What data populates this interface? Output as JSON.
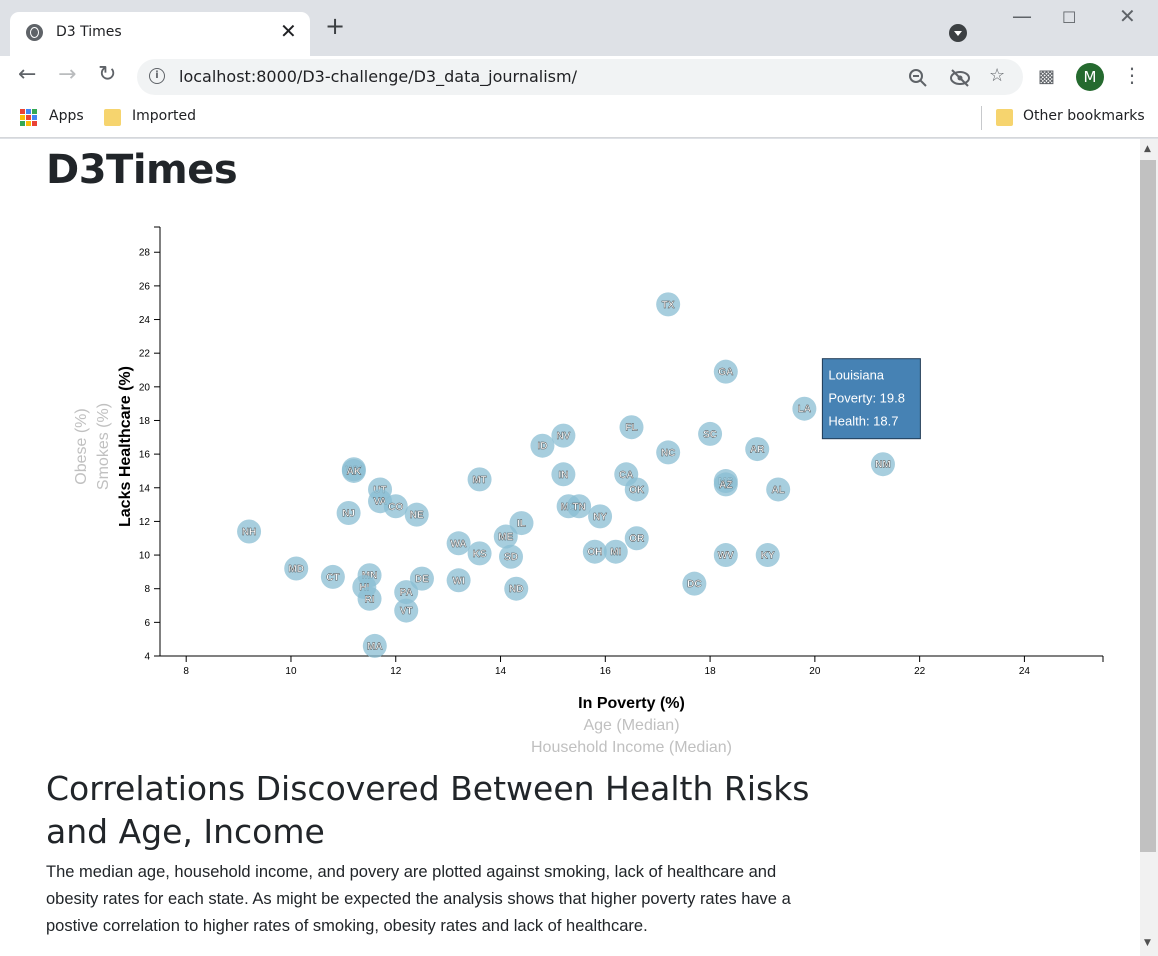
{
  "browser": {
    "tab_title": "D3 Times",
    "tab_close": "✕",
    "new_tab": "+",
    "url": "localhost:8000/D3-challenge/D3_data_journalism/",
    "bookmarks": {
      "apps": "Apps",
      "imported": "Imported",
      "other": "Other bookmarks"
    },
    "avatar_letter": "M",
    "icons": {
      "globe": "globe-icon",
      "zoom": "zoom-out-icon",
      "eye": "eye-off-icon",
      "star": "star-icon",
      "extensions": "puzzle-icon",
      "menu": "more-vert-icon"
    }
  },
  "page": {
    "title": "D3Times",
    "section_title": "Correlations Discovered Between Health Risks and Age, Income",
    "section_text": "The median age, household income, and povery are plotted against smoking, lack of healthcare and obesity rates for each state. As might be expected the analysis shows that higher poverty rates have a postive correlation to higher rates of smoking, obesity rates and lack of healthcare."
  },
  "colors": {
    "circle_fill": "#89bdd3",
    "tooltip_bg": "#4682b4",
    "inactive_label": "#c0c0c0",
    "active_label": "#000000"
  },
  "chart_data": {
    "type": "scatter",
    "xlim": [
      7.5,
      25.5
    ],
    "ylim": [
      4,
      29.5
    ],
    "xticks": [
      8,
      10,
      12,
      14,
      16,
      18,
      20,
      22,
      24
    ],
    "yticks": [
      4,
      6,
      8,
      10,
      12,
      14,
      16,
      18,
      20,
      22,
      24,
      26,
      28
    ],
    "x_axis_labels": [
      {
        "text": "In Poverty (%)",
        "active": true
      },
      {
        "text": "Age (Median)",
        "active": false
      },
      {
        "text": "Household Income (Median)",
        "active": false
      }
    ],
    "y_axis_labels": [
      {
        "text": "Lacks Healthcare (%)",
        "active": true
      },
      {
        "text": "Smokes (%)",
        "active": false
      },
      {
        "text": "Obese (%)",
        "active": false
      }
    ],
    "points": [
      {
        "abbr": "TX",
        "x": 17.2,
        "y": 24.9
      },
      {
        "abbr": "GA",
        "x": 18.3,
        "y": 20.9
      },
      {
        "abbr": "LA",
        "x": 19.8,
        "y": 18.7
      },
      {
        "abbr": "FL",
        "x": 16.5,
        "y": 17.6
      },
      {
        "abbr": "SC",
        "x": 18.0,
        "y": 17.2
      },
      {
        "abbr": "NV",
        "x": 15.2,
        "y": 17.1
      },
      {
        "abbr": "ID",
        "x": 14.8,
        "y": 16.5
      },
      {
        "abbr": "AR",
        "x": 18.9,
        "y": 16.3
      },
      {
        "abbr": "NC",
        "x": 17.2,
        "y": 16.1
      },
      {
        "abbr": "NM",
        "x": 21.3,
        "y": 15.4
      },
      {
        "abbr": "WY",
        "x": 11.2,
        "y": 15.1
      },
      {
        "abbr": "AK",
        "x": 11.2,
        "y": 15.0
      },
      {
        "abbr": "IN",
        "x": 15.2,
        "y": 14.8
      },
      {
        "abbr": "CA",
        "x": 16.4,
        "y": 14.8
      },
      {
        "abbr": "MT",
        "x": 13.6,
        "y": 14.5
      },
      {
        "abbr": "MS",
        "x": 18.3,
        "y": 14.4
      },
      {
        "abbr": "AZ",
        "x": 18.3,
        "y": 14.2
      },
      {
        "abbr": "AL",
        "x": 19.3,
        "y": 13.9
      },
      {
        "abbr": "OK",
        "x": 16.6,
        "y": 13.9
      },
      {
        "abbr": "UT",
        "x": 11.7,
        "y": 13.9
      },
      {
        "abbr": "VA",
        "x": 11.7,
        "y": 13.2
      },
      {
        "abbr": "CO",
        "x": 12.0,
        "y": 12.9
      },
      {
        "abbr": "MO",
        "x": 15.3,
        "y": 12.9
      },
      {
        "abbr": "TN",
        "x": 15.5,
        "y": 12.9
      },
      {
        "abbr": "NJ",
        "x": 11.1,
        "y": 12.5
      },
      {
        "abbr": "NE",
        "x": 12.4,
        "y": 12.4
      },
      {
        "abbr": "NY",
        "x": 15.9,
        "y": 12.3
      },
      {
        "abbr": "IL",
        "x": 14.4,
        "y": 11.9
      },
      {
        "abbr": "NH",
        "x": 9.2,
        "y": 11.4
      },
      {
        "abbr": "ME",
        "x": 14.1,
        "y": 11.1
      },
      {
        "abbr": "OR",
        "x": 16.6,
        "y": 11.0
      },
      {
        "abbr": "WA",
        "x": 13.2,
        "y": 10.7
      },
      {
        "abbr": "OH",
        "x": 15.8,
        "y": 10.2
      },
      {
        "abbr": "MI",
        "x": 16.2,
        "y": 10.2
      },
      {
        "abbr": "KS",
        "x": 13.6,
        "y": 10.1
      },
      {
        "abbr": "WV",
        "x": 18.3,
        "y": 10.0
      },
      {
        "abbr": "KY",
        "x": 19.1,
        "y": 10.0
      },
      {
        "abbr": "SD",
        "x": 14.2,
        "y": 9.9
      },
      {
        "abbr": "MD",
        "x": 10.1,
        "y": 9.2
      },
      {
        "abbr": "CT",
        "x": 10.8,
        "y": 8.7
      },
      {
        "abbr": "MN",
        "x": 11.5,
        "y": 8.8
      },
      {
        "abbr": "DE",
        "x": 12.5,
        "y": 8.6
      },
      {
        "abbr": "WI",
        "x": 13.2,
        "y": 8.5
      },
      {
        "abbr": "DC",
        "x": 17.7,
        "y": 8.3
      },
      {
        "abbr": "HI",
        "x": 11.4,
        "y": 8.1
      },
      {
        "abbr": "PA",
        "x": 12.2,
        "y": 7.8
      },
      {
        "abbr": "ND",
        "x": 14.3,
        "y": 8.0
      },
      {
        "abbr": "RI",
        "x": 11.5,
        "y": 7.4
      },
      {
        "abbr": "VT",
        "x": 12.2,
        "y": 6.7
      },
      {
        "abbr": "MA",
        "x": 11.6,
        "y": 4.6
      }
    ],
    "tooltip": {
      "state": "Louisiana",
      "line1": "Poverty: 19.8",
      "line2": "Health: 18.7"
    }
  }
}
